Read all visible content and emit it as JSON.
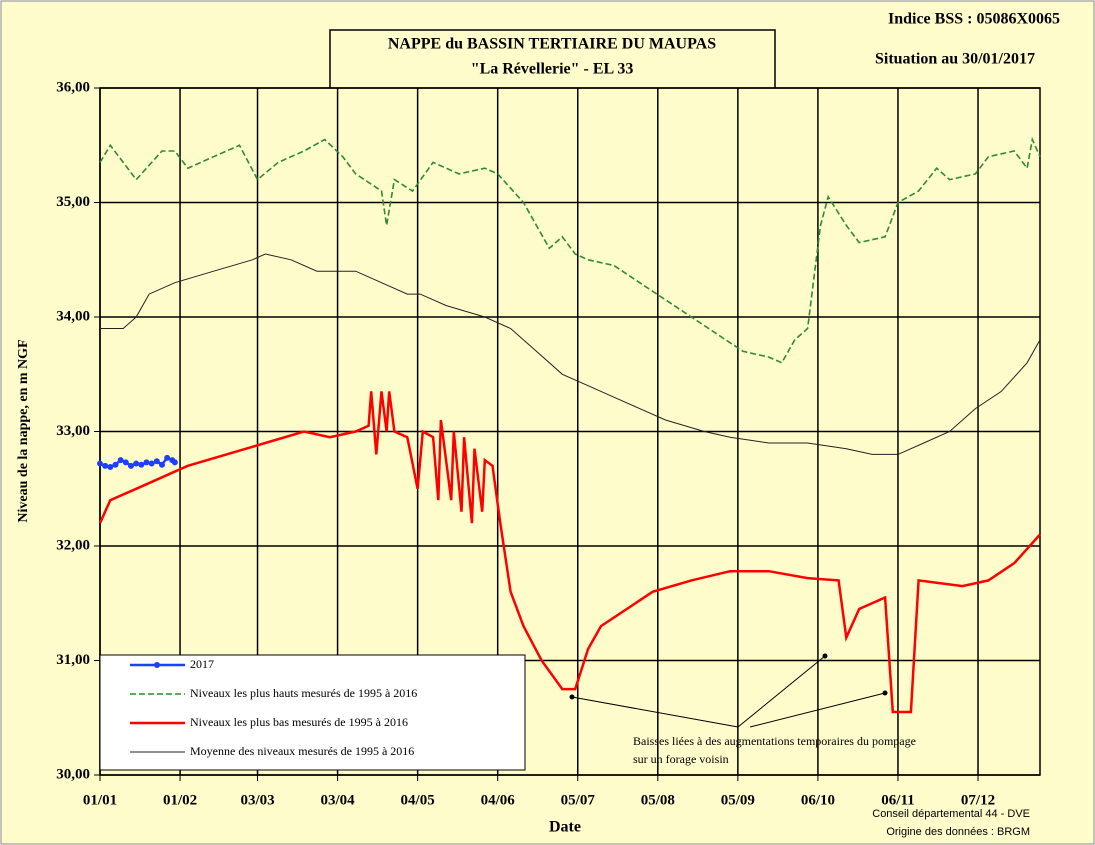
{
  "chart_data": {
    "type": "line",
    "title": [
      "NAPPE du BASSIN TERTIAIRE DU MAUPAS",
      "\"La Révellerie\" - EL 33"
    ],
    "top_right": [
      "Indice BSS : 05086X0065",
      "Situation au 30/01/2017"
    ],
    "xlabel": "Date",
    "ylabel": "Niveau de la nappe, en m NGF",
    "footer": [
      "Conseil départemental 44 - DVE",
      "Origine des données : BRGM"
    ],
    "annotation": [
      "Baisses liées à des augmentations temporaires du pompage",
      "sur un forage voisin"
    ],
    "xlim": [
      1,
      365
    ],
    "xticks": [
      {
        "value": 1,
        "label": "01/01"
      },
      {
        "value": 32,
        "label": "01/02"
      },
      {
        "value": 62,
        "label": "03/03"
      },
      {
        "value": 93,
        "label": "03/04"
      },
      {
        "value": 124,
        "label": "04/05"
      },
      {
        "value": 155,
        "label": "04/06"
      },
      {
        "value": 186,
        "label": "05/07"
      },
      {
        "value": 217,
        "label": "05/08"
      },
      {
        "value": 248,
        "label": "05/09"
      },
      {
        "value": 279,
        "label": "06/10"
      },
      {
        "value": 310,
        "label": "06/11"
      },
      {
        "value": 341,
        "label": "07/12"
      }
    ],
    "ylim": [
      30,
      36
    ],
    "yticks": [
      {
        "value": 30,
        "label": "30,00"
      },
      {
        "value": 31,
        "label": "31,00"
      },
      {
        "value": 32,
        "label": "32,00"
      },
      {
        "value": 33,
        "label": "33,00"
      },
      {
        "value": 34,
        "label": "34,00"
      },
      {
        "value": 35,
        "label": "35,00"
      },
      {
        "value": 36,
        "label": "36,00"
      }
    ],
    "grid": true,
    "series": [
      {
        "name": "2017",
        "color": "#1f3fff",
        "line_style": "solid",
        "markers": true,
        "x": [
          1,
          3,
          5,
          7,
          9,
          11,
          13,
          15,
          17,
          19,
          21,
          23,
          25,
          27,
          29,
          30
        ],
        "values": [
          32.72,
          32.7,
          32.69,
          32.71,
          32.75,
          32.73,
          32.7,
          32.72,
          32.71,
          32.73,
          32.72,
          32.74,
          32.71,
          32.77,
          32.75,
          32.73
        ]
      },
      {
        "name": "Niveaux les plus hauts mesurés de 1995 à 2016",
        "color": "#2e8b2e",
        "line_style": "dashed",
        "markers": false,
        "x": [
          1,
          5,
          15,
          25,
          30,
          35,
          45,
          55,
          62,
          70,
          80,
          88,
          95,
          100,
          110,
          112,
          115,
          122,
          130,
          140,
          150,
          155,
          165,
          170,
          175,
          180,
          185,
          190,
          200,
          210,
          220,
          230,
          240,
          250,
          260,
          265,
          270,
          275,
          280,
          283,
          290,
          295,
          305,
          310,
          318,
          325,
          330,
          340,
          345,
          355,
          360,
          362,
          365
        ],
        "values": [
          35.35,
          35.5,
          35.2,
          35.45,
          35.45,
          35.3,
          35.4,
          35.5,
          35.2,
          35.35,
          35.45,
          35.55,
          35.4,
          35.25,
          35.1,
          34.8,
          35.2,
          35.1,
          35.35,
          35.25,
          35.3,
          35.25,
          35.0,
          34.8,
          34.6,
          34.7,
          34.55,
          34.5,
          34.45,
          34.3,
          34.15,
          34.0,
          33.85,
          33.7,
          33.65,
          33.6,
          33.8,
          33.9,
          34.8,
          35.05,
          34.8,
          34.65,
          34.7,
          35.0,
          35.1,
          35.3,
          35.2,
          35.25,
          35.4,
          35.45,
          35.3,
          35.55,
          35.4
        ]
      },
      {
        "name": "Niveaux les plus bas mesurés de 1995 à 2016",
        "color": "#ff0000",
        "line_style": "solid",
        "markers": false,
        "x": [
          1,
          5,
          15,
          25,
          35,
          50,
          65,
          80,
          90,
          100,
          105,
          106,
          108,
          110,
          112,
          113,
          115,
          120,
          124,
          126,
          130,
          132,
          133,
          137,
          138,
          141,
          142,
          145,
          146,
          149,
          150,
          153,
          156,
          160,
          165,
          172,
          180,
          185,
          190,
          195,
          205,
          215,
          230,
          245,
          260,
          275,
          287,
          290,
          295,
          305,
          308,
          315,
          318,
          335,
          345,
          355,
          365
        ],
        "values": [
          32.2,
          32.4,
          32.5,
          32.6,
          32.7,
          32.8,
          32.9,
          33.0,
          32.95,
          33.0,
          33.05,
          33.35,
          32.8,
          33.35,
          33.0,
          33.35,
          33.0,
          32.95,
          32.5,
          33.0,
          32.95,
          32.4,
          33.1,
          32.4,
          33.0,
          32.3,
          32.95,
          32.2,
          32.85,
          32.3,
          32.75,
          32.7,
          32.2,
          31.6,
          31.3,
          31.0,
          30.75,
          30.75,
          31.1,
          31.3,
          31.45,
          31.6,
          31.7,
          31.78,
          31.78,
          31.72,
          31.7,
          31.2,
          31.45,
          31.55,
          30.55,
          30.55,
          31.7,
          31.65,
          31.7,
          31.85,
          32.1
        ]
      },
      {
        "name": "Moyenne des niveaux mesurés de 1995 à 2016",
        "color": "#222222",
        "line_style": "thin",
        "markers": false,
        "x": [
          1,
          10,
          15,
          20,
          30,
          45,
          60,
          65,
          75,
          85,
          100,
          110,
          120,
          125,
          135,
          150,
          160,
          170,
          180,
          190,
          200,
          210,
          220,
          235,
          245,
          260,
          275,
          290,
          300,
          310,
          320,
          330,
          340,
          350,
          360,
          365
        ],
        "values": [
          33.9,
          33.9,
          34.0,
          34.2,
          34.3,
          34.4,
          34.5,
          34.55,
          34.5,
          34.4,
          34.4,
          34.3,
          34.2,
          34.2,
          34.1,
          34.0,
          33.9,
          33.7,
          33.5,
          33.4,
          33.3,
          33.2,
          33.1,
          33.0,
          32.95,
          32.9,
          32.9,
          32.85,
          32.8,
          32.8,
          32.9,
          33.0,
          33.2,
          33.35,
          33.6,
          33.8
        ]
      }
    ]
  }
}
